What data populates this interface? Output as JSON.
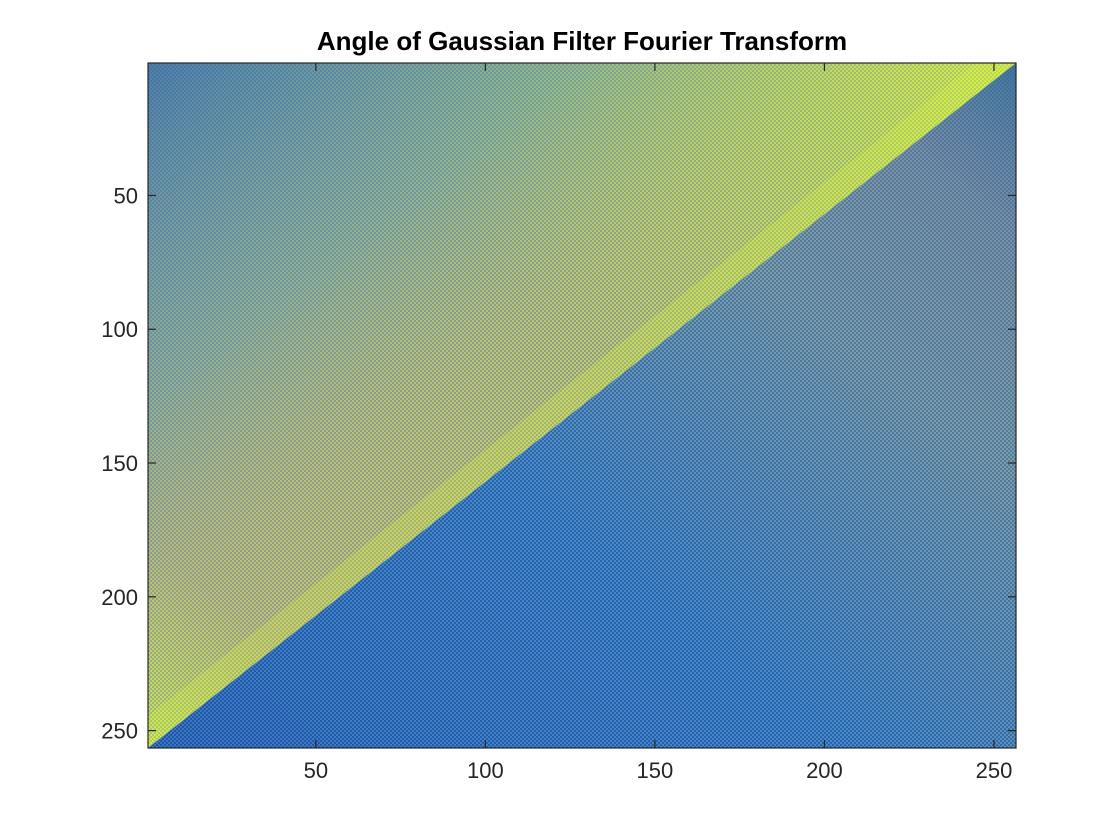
{
  "chart_data": {
    "type": "heatmap",
    "title": "Angle of Gaussian Filter Fourier Transform",
    "xlabel": "",
    "ylabel": "",
    "xlim": [
      0.5,
      256.5
    ],
    "ylim": [
      0.5,
      256.5
    ],
    "y_reversed": true,
    "x_ticks": [
      50,
      100,
      150,
      200,
      250
    ],
    "y_ticks": [
      50,
      100,
      150,
      200,
      250
    ],
    "grid": false,
    "colormap": "parula",
    "matrix_size": [
      256,
      256
    ],
    "regions": [
      {
        "name": "upper-left triangle",
        "dominant_color": "#c8c46a",
        "edge_color": "#d8f040"
      },
      {
        "name": "lower-right triangle",
        "dominant_color": "#3b72b8",
        "edge_color": "#2a5fb0"
      }
    ],
    "boundary": "main diagonal from (256, 1) to (1, 256)",
    "colors": {
      "dark_blue": "#1e4fae",
      "mid_blue": "#3f86c8",
      "teal": "#3aa8a0",
      "tan": "#c4a878",
      "olive": "#b8b86a",
      "lime": "#c9e64a",
      "yellow_green": "#e2f23c",
      "axis_color": "#262626"
    }
  }
}
